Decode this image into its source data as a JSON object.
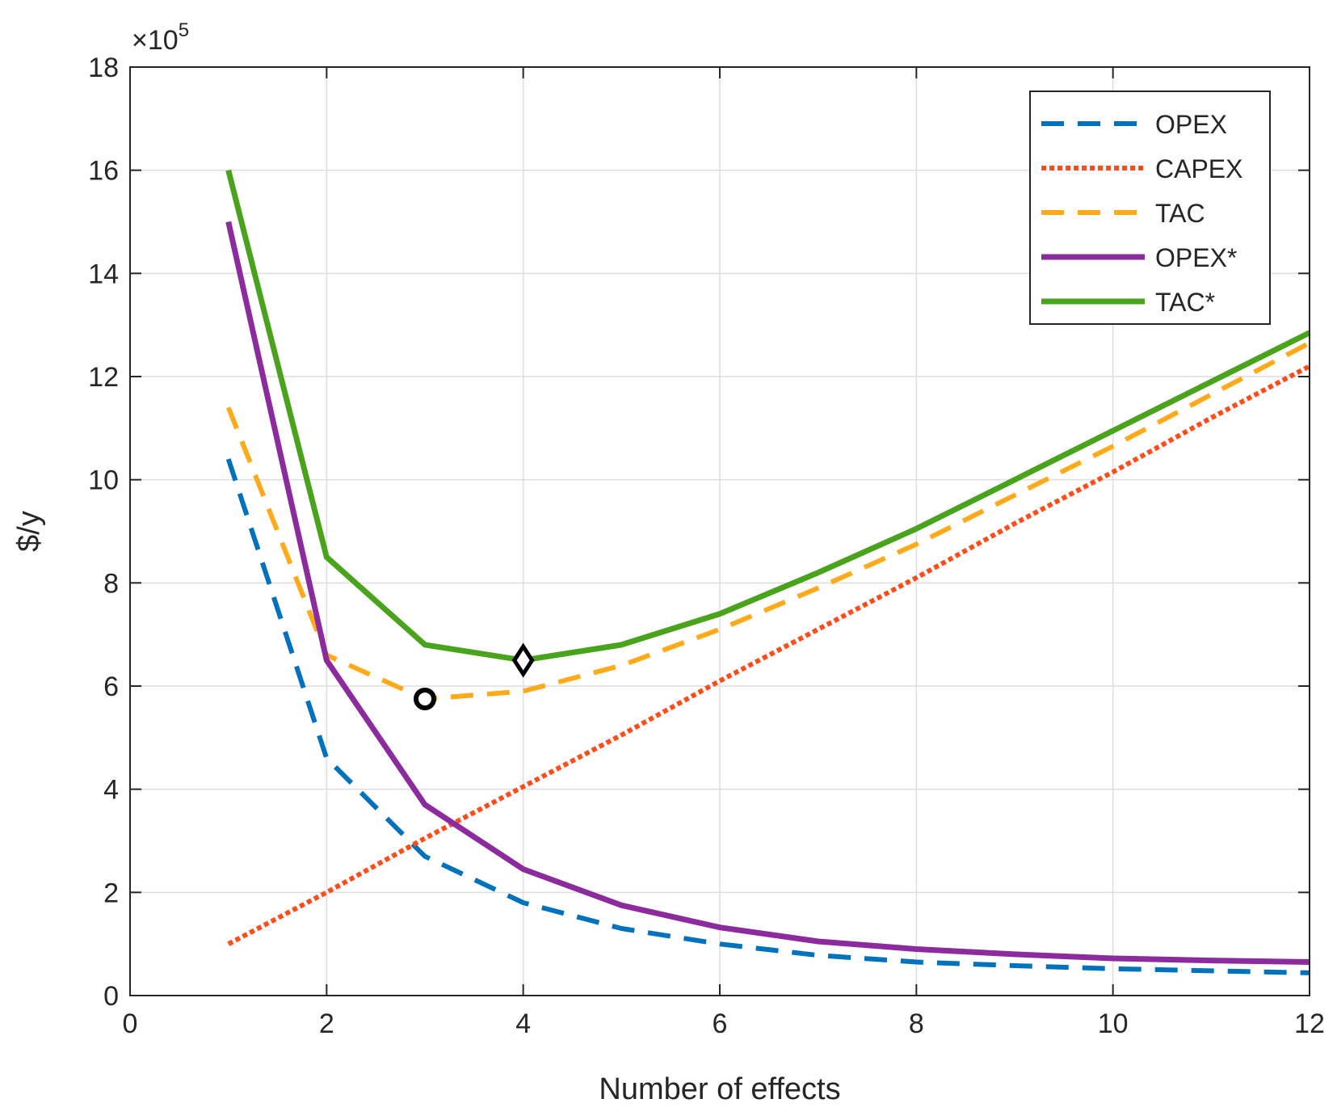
{
  "chart_data": {
    "type": "line",
    "title": "",
    "xlabel": "Number of effects",
    "ylabel": "$/y",
    "exponent_label": "×10",
    "exponent_power": "5",
    "xlim": [
      0,
      12
    ],
    "ylim": [
      0,
      18
    ],
    "xticks": [
      0,
      2,
      4,
      6,
      8,
      10,
      12
    ],
    "yticks": [
      0,
      2,
      4,
      6,
      8,
      10,
      12,
      14,
      16,
      18
    ],
    "grid": true,
    "legend_position": "top-right",
    "x": [
      1,
      2,
      3,
      4,
      5,
      6,
      7,
      8,
      9,
      10,
      11,
      12
    ],
    "series": [
      {
        "name": "OPEX",
        "style": "dashed",
        "color": "#0072BD",
        "values": [
          10.4,
          4.6,
          2.7,
          1.8,
          1.3,
          1.0,
          0.78,
          0.65,
          0.58,
          0.52,
          0.48,
          0.44
        ]
      },
      {
        "name": "CAPEX",
        "style": "dotted",
        "color": "#FF4E1A",
        "values": [
          1.0,
          2.0,
          3.05,
          4.05,
          5.05,
          6.1,
          7.1,
          8.1,
          9.15,
          10.15,
          11.2,
          12.2
        ]
      },
      {
        "name": "TAC",
        "style": "dashed",
        "color": "#FFAA1A",
        "values": [
          11.4,
          6.6,
          5.75,
          5.9,
          6.4,
          7.1,
          7.9,
          8.75,
          9.7,
          10.65,
          11.65,
          12.65
        ]
      },
      {
        "name": "OPEX*",
        "style": "solid",
        "color": "#8B2B9E",
        "values": [
          15.0,
          6.5,
          3.7,
          2.45,
          1.75,
          1.32,
          1.05,
          0.9,
          0.8,
          0.72,
          0.68,
          0.65
        ]
      },
      {
        "name": "TAC*",
        "style": "solid",
        "color": "#4AA31C",
        "values": [
          16.0,
          8.5,
          6.8,
          6.5,
          6.8,
          7.4,
          8.2,
          9.05,
          10.0,
          10.95,
          11.9,
          12.85
        ]
      }
    ],
    "markers": [
      {
        "name": "TAC minimum",
        "shape": "circle",
        "x": 3,
        "y": 5.75
      },
      {
        "name": "TAC* minimum",
        "shape": "diamond",
        "x": 4,
        "y": 6.5
      }
    ]
  }
}
